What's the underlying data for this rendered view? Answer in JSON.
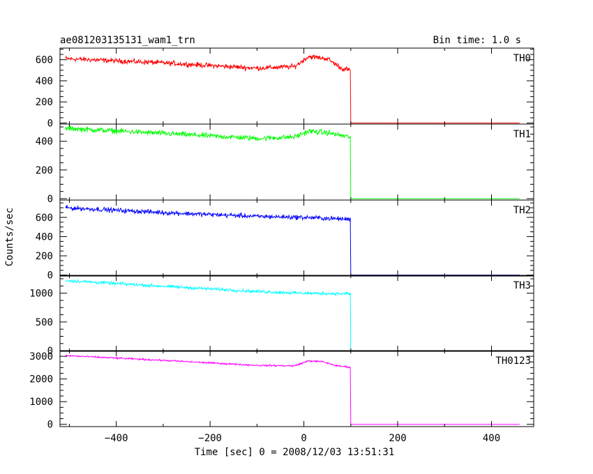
{
  "chart_data": {
    "type": "line",
    "title": "ae081203135131_wam1_trn",
    "bin_time_label": "Bin time: 1.0 s",
    "xlabel": "Time [sec] 0 = 2008/12/03 13:51:31",
    "ylabel": "Counts/sec",
    "xlim": [
      -520,
      490
    ],
    "x_ticks": [
      -400,
      -200,
      0,
      200,
      400
    ],
    "x_tick_labels": [
      "−400",
      "−200",
      "0",
      "200",
      "400"
    ],
    "data_x_range": [
      -508,
      460
    ],
    "drop_time": 100,
    "grid": false,
    "legend": "none",
    "panels": [
      {
        "name": "TH0",
        "color": "#ff0000",
        "ylim": [
          -10,
          710
        ],
        "y_ticks": [
          0,
          200,
          400,
          600
        ],
        "y_tick_labels": [
          "0",
          "200",
          "400",
          "600"
        ],
        "trend": [
          [
            -508,
            610
          ],
          [
            -300,
            570
          ],
          [
            -100,
            520
          ],
          [
            -20,
            535
          ],
          [
            10,
            630
          ],
          [
            50,
            610
          ],
          [
            80,
            520
          ],
          [
            99,
            500
          ]
        ],
        "noise": 35,
        "after_level": 0
      },
      {
        "name": "TH1",
        "color": "#00ff00",
        "ylim": [
          -10,
          520
        ],
        "y_ticks": [
          0,
          200,
          400
        ],
        "y_tick_labels": [
          "0",
          "200",
          "400"
        ],
        "trend": [
          [
            -508,
            490
          ],
          [
            -300,
            455
          ],
          [
            -100,
            420
          ],
          [
            -20,
            430
          ],
          [
            10,
            470
          ],
          [
            50,
            460
          ],
          [
            80,
            440
          ],
          [
            99,
            430
          ]
        ],
        "noise": 28,
        "after_level": 0
      },
      {
        "name": "TH2",
        "color": "#0000ff",
        "ylim": [
          -10,
          780
        ],
        "y_ticks": [
          0,
          200,
          400,
          600
        ],
        "y_tick_labels": [
          "0",
          "200",
          "400",
          "600"
        ],
        "trend": [
          [
            -508,
            700
          ],
          [
            -300,
            650
          ],
          [
            -100,
            610
          ],
          [
            0,
            600
          ],
          [
            99,
            580
          ]
        ],
        "noise": 35,
        "after_level": 0
      },
      {
        "name": "TH3",
        "color": "#00ffff",
        "ylim": [
          -10,
          1310
        ],
        "y_ticks": [
          0,
          500,
          1000
        ],
        "y_tick_labels": [
          "0",
          "500",
          "1000"
        ],
        "trend": [
          [
            -508,
            1220
          ],
          [
            -300,
            1120
          ],
          [
            -100,
            1030
          ],
          [
            0,
            1000
          ],
          [
            99,
            990
          ]
        ],
        "noise": 40,
        "after_level": 0
      },
      {
        "name": "TH0123",
        "color": "#ff00ff",
        "ylim": [
          -100,
          3250
        ],
        "y_ticks": [
          0,
          1000,
          2000,
          3000
        ],
        "y_tick_labels": [
          "0",
          "1000",
          "2000",
          "3000"
        ],
        "trend": [
          [
            -508,
            3030
          ],
          [
            -300,
            2820
          ],
          [
            -100,
            2600
          ],
          [
            -20,
            2580
          ],
          [
            10,
            2800
          ],
          [
            40,
            2760
          ],
          [
            70,
            2580
          ],
          [
            99,
            2520
          ]
        ],
        "noise": 55,
        "after_level": 0
      }
    ]
  }
}
